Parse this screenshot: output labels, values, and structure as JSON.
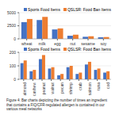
{
  "caption": "Figure 4: Bar charts depicting the number of times an ingredient that contains a FIQ/CFR-regulated allergen is contained in our various meal networks",
  "chart_data": [
    {
      "type": "bar",
      "categories": [
        "wheat",
        "milk",
        "egg",
        "nut",
        "sesame",
        "soy"
      ],
      "series": [
        {
          "name": "Sports Food Items",
          "color": "#4472c4",
          "values": [
            3200,
            3600,
            1800,
            600,
            400,
            300
          ]
        },
        {
          "name": "QSLSR: Food Ban Items",
          "color": "#ed7d31",
          "values": [
            3800,
            4200,
            2000,
            800,
            500,
            350
          ]
        }
      ],
      "ylim": [
        0,
        5000
      ],
      "yticks": [
        0,
        2500,
        5000
      ],
      "grid": true,
      "legend": "upper right"
    },
    {
      "type": "bar",
      "categories": [
        "almond",
        "cashew",
        "peanut",
        "walnut",
        "pecan",
        "shrimp",
        "crab",
        "salmon",
        "tuna",
        "cod"
      ],
      "series": [
        {
          "name": "Sports Food Items",
          "color": "#4472c4",
          "values": [
            120,
            60,
            150,
            80,
            30,
            90,
            40,
            110,
            70,
            50
          ]
        },
        {
          "name": "QSLSR: Food Ban Items",
          "color": "#ed7d31",
          "values": [
            140,
            70,
            180,
            90,
            40,
            100,
            50,
            130,
            80,
            60
          ]
        }
      ],
      "ylim": [
        0,
        200
      ],
      "yticks": [
        0,
        100,
        200
      ],
      "grid": true,
      "legend": "upper right"
    }
  ]
}
